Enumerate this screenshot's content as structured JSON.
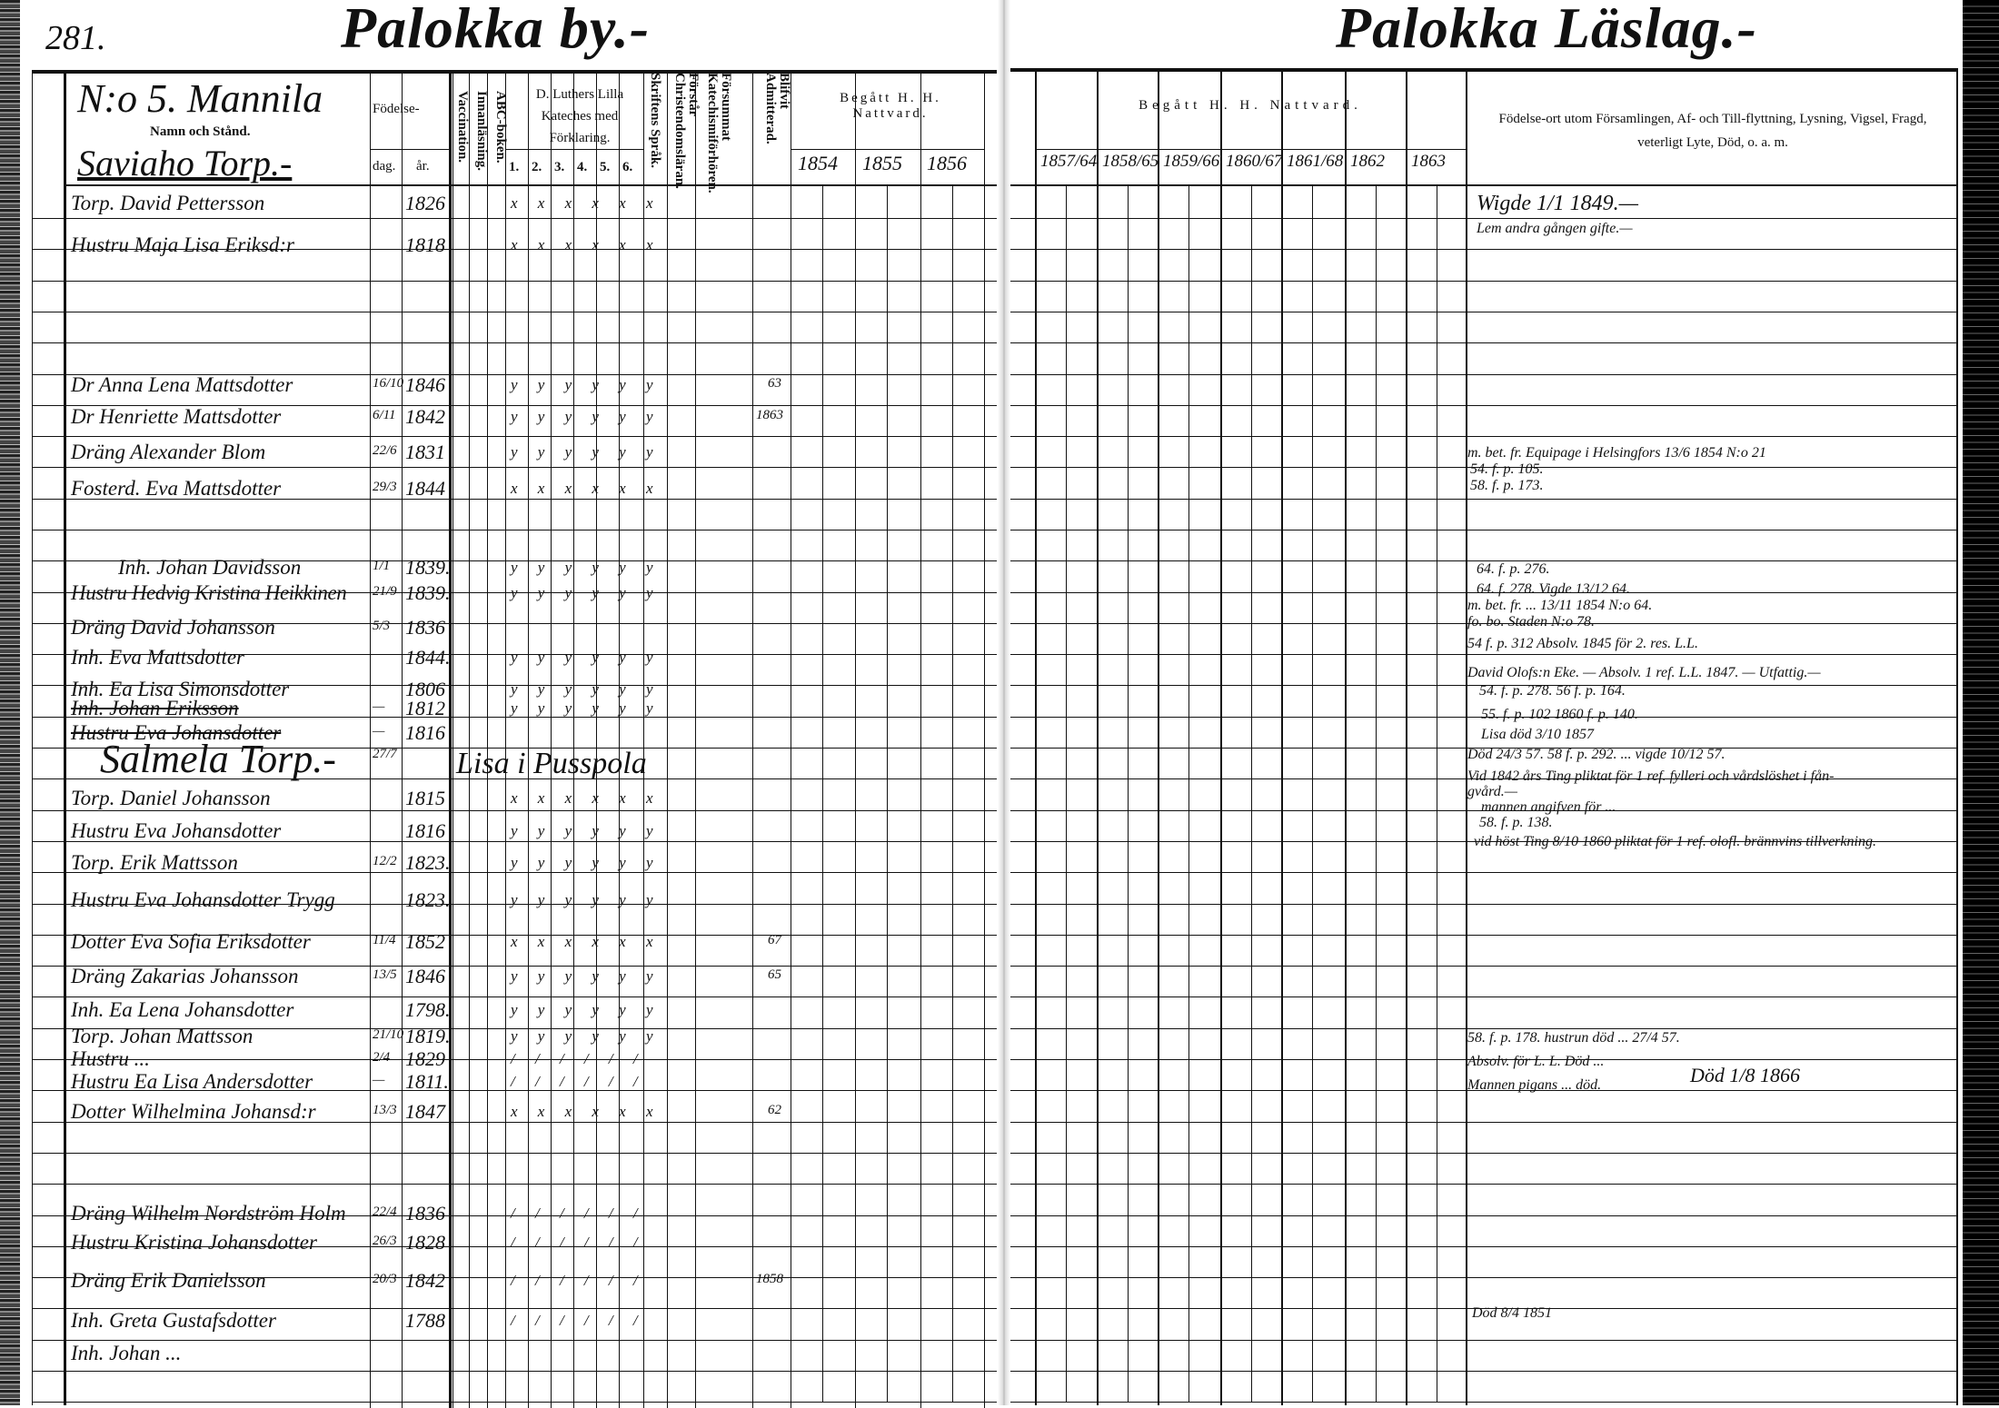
{
  "left_page": {
    "page_number": "281.",
    "title": "Palokka by.-",
    "house_heading": "N:o 5. Mannila",
    "name_column_header": "Namn och Stånd.",
    "subsection": "Saviaho Torp.-",
    "birth_header": "Födelse-",
    "birth_day_header": "dag.",
    "birth_year_header": "år.",
    "vaccination_header": "Vaccination.",
    "reading_header": "Innanläsning.",
    "abc_header": "ABC-boken.",
    "catechism_header": "D. Luthers Lilla Kateches med Förklaring.",
    "catechism_numbers": [
      "1.",
      "2.",
      "3.",
      "4.",
      "5.",
      "6."
    ],
    "scripture_header": "Skriftens Språk.",
    "understands_header": "Förstår Christendomsläran.",
    "missed_header": "Försummat Katechismiförhören.",
    "admitted_header": "Blifvit Admitterad.",
    "communion_header": "Begått H. H. Nattvard.",
    "communion_years": [
      "1854",
      "1855",
      "1856"
    ]
  },
  "right_page": {
    "title": "Palokka Läslag.-",
    "communion_header": "Begått H. H. Nattvard.",
    "communion_years": [
      "1857/64",
      "1858/65",
      "1859/66",
      "1860/67",
      "1861/68",
      "1862",
      "1863"
    ],
    "remarks_header": "Födelse-ort utom Församlingen, Af- och Till-flyttning, Lysning, Vigsel, Fragd, veterligt Lyte, Död, o. a. m."
  },
  "entries": [
    {
      "name": "Torp. David Pettersson",
      "day": "",
      "year": "1826",
      "cat": "x x x x x x"
    },
    {
      "name": "Hustru Maja Lisa Eriksd:r",
      "day": "",
      "year": "1818",
      "cat": "x x x x x x"
    },
    {
      "name": "Dr Anna Lena Mattsdotter",
      "day": "16/10",
      "year": "1846",
      "cat": "y y y y y y",
      "admit": "63"
    },
    {
      "name": "Dr Henriette Mattsdotter",
      "day": "6/11",
      "year": "1842",
      "cat": "y y y y y y",
      "admit": "1863"
    },
    {
      "name": "Dräng Alexander Blom",
      "day": "22/6",
      "year": "1831",
      "cat": "y y y y y y"
    },
    {
      "name": "Fosterd. Eva Mattsdotter",
      "day": "29/3",
      "year": "1844",
      "cat": "x x x x x x"
    },
    {
      "name": "Inh. Johan Davidsson",
      "day": "1/1",
      "year": "1839.",
      "cat": "y y y y y y"
    },
    {
      "name": "Hustru Hedvig Kristina Heikkinen",
      "day": "21/9",
      "year": "1839.",
      "cat": "y y y y y y"
    },
    {
      "name": "Dräng David Johansson",
      "day": "5/3",
      "year": "1836",
      "cat": ""
    },
    {
      "name": "Inh. Eva Mattsdotter",
      "day": "",
      "year": "1844.",
      "cat": "y y y y y y"
    },
    {
      "name": "Inh. Ea Lisa Simonsdotter",
      "day": "",
      "year": "1806",
      "cat": "y y y y y y"
    },
    {
      "name": "Inh. Johan Eriksson",
      "day": "—",
      "year": "1812",
      "cat": "y y y y y y"
    },
    {
      "name": "Hustru Eva Johansdotter",
      "day": "—",
      "year": "1816",
      "cat": ""
    },
    {
      "name": "Salmela Torp.-",
      "day": "27/7",
      "year": "",
      "cat": "",
      "note": "Lisa i Pusspola"
    },
    {
      "name": "Torp. Daniel Johansson",
      "day": "",
      "year": "1815",
      "cat": "x x x x x x"
    },
    {
      "name": "Hustru Eva Johansdotter",
      "day": "",
      "year": "1816",
      "cat": "y y y y y y"
    },
    {
      "name": "Torp. Erik Mattsson",
      "day": "12/2",
      "year": "1823.",
      "cat": "y y y y y y"
    },
    {
      "name": "Hustru Eva Johansdotter Trygg",
      "day": "",
      "year": "1823.",
      "cat": "y y y y y y"
    },
    {
      "name": "Dotter Eva Sofia Eriksdotter",
      "day": "11/4",
      "year": "1852",
      "cat": "x x x x x x",
      "admit": "67"
    },
    {
      "name": "Dräng Zakarias Johansson",
      "day": "13/5",
      "year": "1846",
      "cat": "y y y y y y",
      "admit": "65"
    },
    {
      "name": "Inh. Ea Lena Johansdotter",
      "day": "",
      "year": "1798.",
      "cat": "y y y y y y"
    },
    {
      "name": "Torp. Johan Mattsson",
      "day": "21/10",
      "year": "1819.",
      "cat": "y y y y y y"
    },
    {
      "name": "Hustru ...",
      "day": "2/4",
      "year": "1829",
      "cat": "/ / / / / /"
    },
    {
      "name": "Hustru Ea Lisa Andersdotter",
      "day": "—",
      "year": "1811.",
      "cat": "/ / / / / /"
    },
    {
      "name": "Dotter Wilhelmina Johansd:r",
      "day": "13/3",
      "year": "1847",
      "cat": "x x x x x x",
      "admit": "62"
    },
    {
      "name": "Dräng Wilhelm Nordström Holm",
      "day": "22/4",
      "year": "1836",
      "cat": "/ / / / / /"
    },
    {
      "name": "Hustru Kristina Johansdotter",
      "day": "26/3",
      "year": "1828",
      "cat": "/ / / / / /"
    },
    {
      "name": "Dräng Erik Danielsson",
      "day": "20/3",
      "year": "1842",
      "cat": "/ / / / / /",
      "admit": "1858"
    },
    {
      "name": "Inh. Greta Gustafsdotter",
      "day": "",
      "year": "1788",
      "cat": "/ / / / / /"
    },
    {
      "name": "Inh. Johan ...",
      "day": "",
      "year": "",
      "cat": ""
    }
  ],
  "remarks": [
    "Wigde 1/1 1849.—",
    "Lem andra gången gifte.—",
    "m. bet. fr. Equipage i Helsingfors 13/6 1854 N:o 21",
    "54. f. p. 105.",
    "58. f. p. 173.",
    "64. f. p. 276.",
    "64. f. 278.     Vigde 13/12 64.",
    "m. bet. fr. ... 13/11 1854 N:o 64.",
    "fo. bo. Staden N:o 78.",
    "54 f. p. 312 Absolv. 1845 för 2. res. L.L.",
    "David Olofs:n Eke. — Absolv. 1 ref. L.L. 1847. — Utfattig.—",
    "54. f. p. 278. 56 f. p. 164.",
    "55. f. p. 102 1860 f. p. 140.",
    "Lisa död 3/10 1857",
    "Död 24/3 57. 58 f. p. 292. ... vigde 10/12 57.",
    "Vid 1842 års Ting pliktat för 1 ref. fylleri och vårdslöshet i fån-",
    "gvård.—",
    "mannen angifven för ...",
    "58. f. p. 138.",
    "vid höst Ting 8/10 1860 pliktat för 1 ref. olofl. brännvins tillverkning.",
    "58. f. p. 178. hustrun död ... 27/4 57.",
    "Absolv. för L. L. Död ...",
    "Mannen pigans ... död.",
    "Död 1/8 1866",
    "Död 8/4 1851"
  ]
}
